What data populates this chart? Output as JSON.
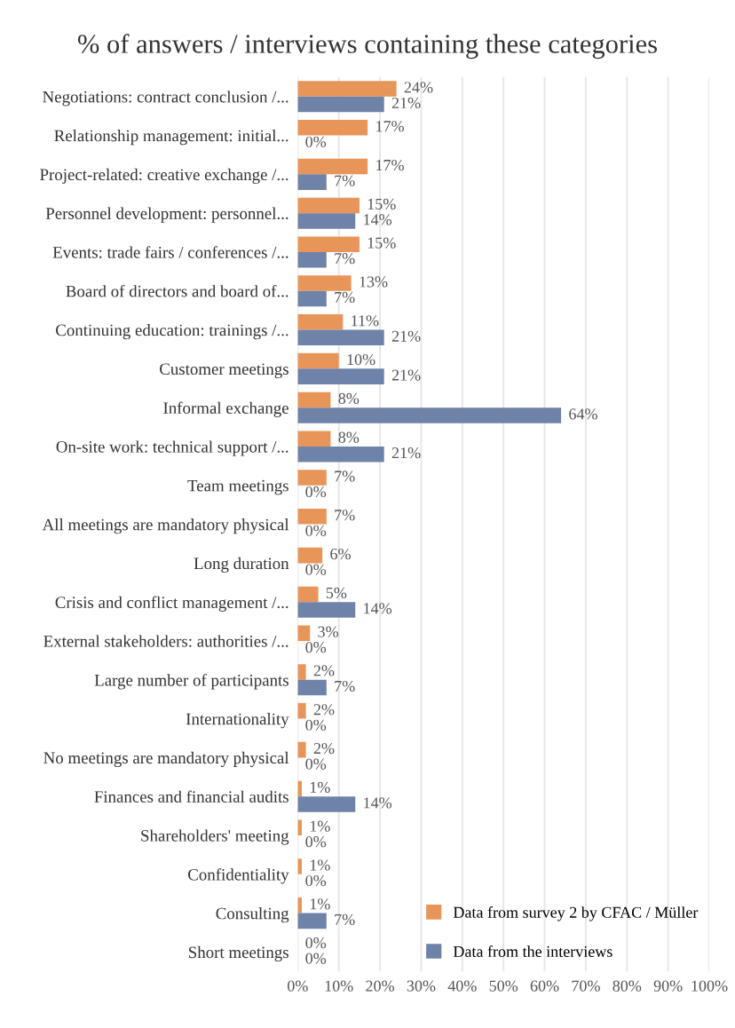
{
  "chart_data": {
    "type": "bar",
    "orientation": "horizontal",
    "title": "% of answers / interviews containing these categories",
    "categories": [
      "Negotiations: contract conclusion /...",
      "Relationship management: initial...",
      "Project-related: creative exchange /...",
      "Personnel development: personnel...",
      "Events: trade fairs / conferences /...",
      "Board of directors and board of...",
      "Continuing education: trainings /...",
      "Customer meetings",
      "Informal exchange",
      "On-site work: technical support /...",
      "Team meetings",
      "All meetings are mandatory physical",
      "Long duration",
      "Crisis and conflict management /...",
      "External stakeholders: authorities /...",
      "Large number of participants",
      "Internationality",
      "No meetings are mandatory physical",
      "Finances and financial audits",
      "Shareholders' meeting",
      "Confidentiality",
      "Consulting",
      "Short meetings"
    ],
    "series": [
      {
        "name": "Data from survey 2 by CFAC / Müller",
        "color": "#e8955a",
        "values": [
          24,
          17,
          17,
          15,
          15,
          13,
          11,
          10,
          8,
          8,
          7,
          7,
          6,
          5,
          3,
          2,
          2,
          2,
          1,
          1,
          1,
          1,
          0
        ],
        "value_labels": [
          "24%",
          "17%",
          "17%",
          "15%",
          "15%",
          "13%",
          "11%",
          "10%",
          "8%",
          "8%",
          "7%",
          "7%",
          "6%",
          "5%",
          "3%",
          "2%",
          "2%",
          "2%",
          "1%",
          "1%",
          "1%",
          "1%",
          "0%"
        ]
      },
      {
        "name": "Data from the interviews",
        "color": "#6f82a8",
        "values": [
          21,
          0,
          7,
          14,
          7,
          7,
          21,
          21,
          64,
          21,
          0,
          0,
          0,
          14,
          0,
          7,
          0,
          0,
          14,
          0,
          0,
          7,
          0
        ],
        "value_labels": [
          "21%",
          "0%",
          "7%",
          "14%",
          "7%",
          "7%",
          "21%",
          "21%",
          "64%",
          "21%",
          "0%",
          "0%",
          "0%",
          "14%",
          "0%",
          "7%",
          "0%",
          "0%",
          "14%",
          "0%",
          "0%",
          "7%",
          "0%"
        ]
      }
    ],
    "xlim": [
      0,
      100
    ],
    "xticks": [
      {
        "value": 0,
        "label": "0%"
      },
      {
        "value": 10,
        "label": "10%"
      },
      {
        "value": 20,
        "label": "20%"
      },
      {
        "value": 30,
        "label": "30%"
      },
      {
        "value": 40,
        "label": "40%"
      },
      {
        "value": 50,
        "label": "50%"
      },
      {
        "value": 60,
        "label": "60%"
      },
      {
        "value": 70,
        "label": "70%"
      },
      {
        "value": 80,
        "label": "80%"
      },
      {
        "value": 90,
        "label": "90%"
      },
      {
        "value": 100,
        "label": "100%"
      }
    ],
    "grid": "x",
    "legend": "bottom right"
  }
}
